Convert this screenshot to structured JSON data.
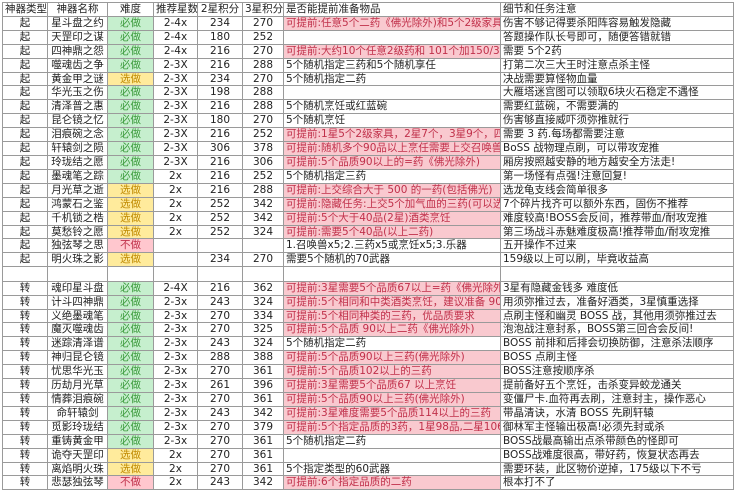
{
  "headers": [
    "神器类型",
    "神器名称",
    "难度",
    "推荐星数",
    "2星积分",
    "3星积分",
    "是否能提前准备物品",
    "细节和任务注意"
  ],
  "colors": {
    "must": "#c6efce",
    "optional": "#ffeb9c",
    "skip": "#ffc7ce",
    "prep_highlight": "#f9c9cf",
    "prep_text": "#c0304a"
  },
  "group1": [
    [
      "起",
      "星斗盘之约",
      "必做",
      "2-4x",
      "234",
      "270",
      "可提前:任意5个二药《佛光除外)和5个2级家具",
      "伤害不够记得要杀阳阵容易触发隐藏"
    ],
    [
      "起",
      "天罡印之谋",
      "必做",
      "2-4x",
      "180",
      "252",
      "",
      "答题操作队长号即可，随便答错就错"
    ],
    [
      "起",
      "四神鼎之怨",
      "必做",
      "2-4x",
      "216",
      "270",
      "可提前:大约10个任意2级药和 101个加150/300 气血或蓝",
      "需要 5个2药"
    ],
    [
      "起",
      "噬魂齿之争",
      "必做",
      "2-3X",
      "216",
      "288",
      "5个随机指定三药和5个随机享任",
      "打第二次三大王时注意点杀主怪"
    ],
    [
      "起",
      "黄金甲之谜",
      "选做",
      "2-3X",
      "234",
      "270",
      "5个随机指定二药",
      "决战需要算怪物血量"
    ],
    [
      "起",
      "华光玉之伤",
      "必做",
      "2-3X",
      "198",
      "288",
      "",
      "大雁塔迷宫图可以领取6块火石稳定不遇怪"
    ],
    [
      "起",
      "清泽普之惠",
      "必做",
      "2-3X",
      "216",
      "288",
      "5个随机烹饪或红蓝碗",
      "需要红蓝碗，不需要满的"
    ],
    [
      "起",
      "昆仑镜之忆",
      "必做",
      "2-3X",
      "180",
      "270",
      "5个随机烹饪",
      "伤害够直接威吓须弥推就行"
    ],
    [
      "起",
      "泪痕碗之念",
      "必做",
      "2-3X",
      "216",
      "252",
      "可提前:1星5个2级家具，2星7个，3星9个，四星11个",
      "需要 3 药.每场都需要注意"
    ],
    [
      "起",
      "轩辕剑之陨",
      "必做",
      "2-3X",
      "306",
      "378",
      "可提前:随机多个90品以上烹任需要上交召唤兽:蛟龙、老虎",
      "BoSS 战物理点刷，可以带攻宠推"
    ],
    [
      "起",
      "玲珑结之愿",
      "必做",
      "2-3X",
      "216",
      "306",
      "可提前:5个品质90以上的=药《佛光除外)",
      "厢房按照越安静的地方越安全方法走!"
    ],
    [
      "起",
      "墨魂笔之踪",
      "必做",
      "2x",
      "216",
      "252",
      "5个随机指定三药",
      "第一场怪有点强!注意回复!"
    ],
    [
      "起",
      "月光草之逝",
      "选做",
      "2x",
      "216",
      "288",
      "可提前:上交综合大于 500 的一药(包括佛光)",
      "选龙龟支线会简单很多"
    ],
    [
      "起",
      "鸿蒙石之鉴",
      "选做",
      "2x",
      "252",
      "342",
      "可提前:隐藏任务:上交5个加气血的三药(可以选择不做隐藏",
      "7个碎片找齐可以额外东西，固伤不推荐"
    ],
    [
      "起",
      "千机锁之梏",
      "选做",
      "2x",
      "252",
      "342",
      "可提前:5个大于40品(2星)酒类烹饪",
      "难度较高!BOSS会反间，推荐带血/耐攻宠推"
    ],
    [
      "起",
      "莫愁铃之愿",
      "选做",
      "2x",
      "252",
      "324",
      "可提前:需要5个40品(以上二药)",
      "第三场战斗赤魅难度极高!推荐带血/耐攻宠推"
    ],
    [
      "起",
      "独弦琴之思",
      "不做",
      "",
      "",
      "",
      "1.召唤兽x5;2.三药x5或烹饪x5;3.乐器",
      "五开操作不过来"
    ],
    [
      "起",
      "明火珠之影",
      "选做",
      "",
      "234",
      "270",
      "需要5个随机的70武器",
      "159级以上可以刷，毕竟收益高"
    ]
  ],
  "group2": [
    [
      "转",
      "魂印星斗盘",
      "必做",
      "2-4X",
      "216",
      "362",
      "可提前:3星需要5个品质67以上=药《佛光除外)",
      "3星有隐藏金钱多 难度低"
    ],
    [
      "转",
      "计斗四神鼎",
      "必做",
      "2-3x",
      "243",
      "324",
      "可提前:5个相同和中类酒类烹饪，建议准备 90 品以上的",
      "用须弥推过去，准备好酒类，3星慎重选择"
    ],
    [
      "转",
      "义绝墨魂笔",
      "必做",
      "2-3x",
      "270",
      "334",
      "可提前:5个相同种类的三药，优品质要求",
      "点刷主怪和幽灵 BOSS 战，其他用须弥推过去"
    ],
    [
      "转",
      "魔灭噬魂齿",
      "必做",
      "2-3x",
      "270",
      "325",
      "可提前:5个品质 90以上二药《佛光除外)",
      "泡泡战注意封系，BOSS第三回合会反间!"
    ],
    [
      "转",
      "迷踪清泽谱",
      "必做",
      "2-3x",
      "243",
      "324",
      "5个随机指定二药",
      "BOSS 前排和后排会切换防御，注意杀法顺序"
    ],
    [
      "转",
      "神归昆仑镜",
      "必做",
      "2-3x",
      "288",
      "388",
      "可提前:5个品质90以上三药(佛光除外)",
      "BOSS 点刷主怪"
    ],
    [
      "转",
      "忧思华光玉",
      "必做",
      "2-3x",
      "270",
      "361",
      "可提前:5个品质102以上的三药",
      "BOSS注意按顺序杀"
    ],
    [
      "转",
      "历劫月光草",
      "必做",
      "2-3x",
      "261",
      "396",
      "可提前:3星需要5个品质67 以上烹饪",
      "提前备好五个烹饪，击杀变异蛟龙通关"
    ],
    [
      "转",
      "情葬泪痕碗",
      "必做",
      "2-3x",
      "270",
      "361",
      "可提前:5个品质90以上三药(佛光除外)",
      "变僵尸卡.血符再去刷，注意封主，操作恶心"
    ],
    [
      "转",
      "命轩辕剑",
      "必做",
      "2-3x",
      "243",
      "342",
      "可提前:3星难度需要5个品质114以上的三药",
      "带晶清诀，水清 BOSS 先刷轩辕"
    ],
    [
      "转",
      "觅影玲珑结",
      "必做",
      "2-3x",
      "270",
      "379",
      "可提前:5个指定品质的3药，1星98品,二星106品,三星114",
      "御林军主怪输出极高!必须先封或杀"
    ],
    [
      "转",
      "重铸黄金甲",
      "必做",
      "2-3x",
      "270",
      "361",
      "5个随机指定二药",
      "BOSS战最高输出点杀带颜色的怪即可"
    ],
    [
      "转",
      "诡夺天罡印",
      "选做",
      "2x",
      "270",
      "361",
      "",
      "BOSS战难度很高，带好药，恢复状态再去"
    ],
    [
      "转",
      "离焰明火珠",
      "选做",
      "2x",
      "270",
      "361",
      "5个指定类型的60武器",
      "需要环装，此区物价逆掉，175级以下不亏"
    ],
    [
      "转",
      "悲瑟独弦琴",
      "不做",
      "2x",
      "243",
      "342",
      "可提前:6个指定品质的二药",
      "根本打不了"
    ]
  ]
}
